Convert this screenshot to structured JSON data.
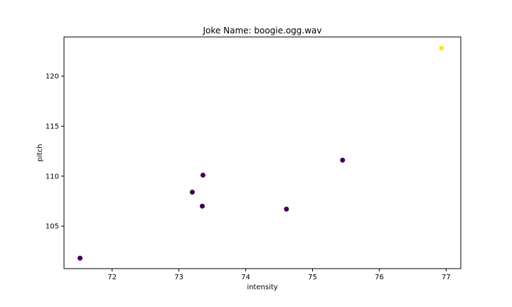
{
  "chart_data": {
    "type": "scatter",
    "title": "Joke Name: boogie.ogg.wav",
    "xlabel": "intensity",
    "ylabel": "pitch",
    "xlim": [
      71.28,
      77.22
    ],
    "ylim": [
      100.75,
      123.92
    ],
    "xticks": [
      72,
      73,
      74,
      75,
      76,
      77
    ],
    "yticks": [
      105,
      110,
      115,
      120
    ],
    "grid": false,
    "colors": {
      "class_0": "#440154",
      "class_1": "#fde725"
    },
    "points": [
      {
        "x": 71.52,
        "y": 101.8,
        "class": 0
      },
      {
        "x": 73.2,
        "y": 108.4,
        "class": 0
      },
      {
        "x": 73.36,
        "y": 110.1,
        "class": 0
      },
      {
        "x": 73.35,
        "y": 107.0,
        "class": 0
      },
      {
        "x": 74.61,
        "y": 106.7,
        "class": 0
      },
      {
        "x": 75.45,
        "y": 111.6,
        "class": 0
      },
      {
        "x": 76.93,
        "y": 122.8,
        "class": 1
      }
    ]
  }
}
